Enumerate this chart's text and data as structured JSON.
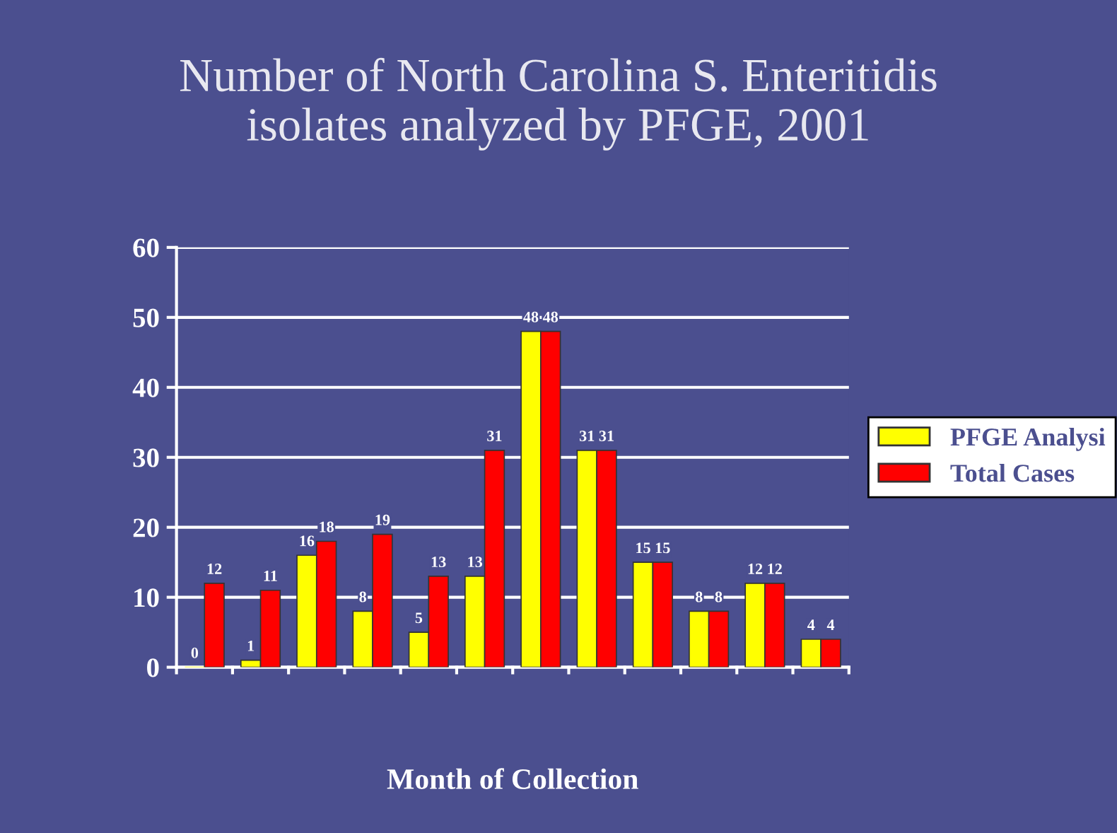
{
  "chart_data": {
    "type": "bar",
    "title": "Number of North Carolina S. Enteritidis\nisolates analyzed by PFGE, 2001",
    "xlabel": "Month of Collection",
    "categories": [
      null,
      null,
      null,
      null,
      null,
      null,
      null,
      null,
      null,
      null,
      null,
      null
    ],
    "series": [
      {
        "name": "PFGE Analysi",
        "color": "#ffff00",
        "values": [
          0,
          1,
          16,
          8,
          5,
          13,
          48,
          31,
          15,
          8,
          12,
          4
        ]
      },
      {
        "name": "Total Cases",
        "color": "#ff0000",
        "values": [
          12,
          11,
          18,
          19,
          13,
          31,
          48,
          31,
          15,
          8,
          12,
          4
        ]
      }
    ],
    "ylim": [
      0,
      60
    ],
    "yticks": [
      0,
      10,
      20,
      30,
      40,
      50,
      60
    ],
    "grid": "y",
    "legend": "right",
    "data_labels": true
  }
}
